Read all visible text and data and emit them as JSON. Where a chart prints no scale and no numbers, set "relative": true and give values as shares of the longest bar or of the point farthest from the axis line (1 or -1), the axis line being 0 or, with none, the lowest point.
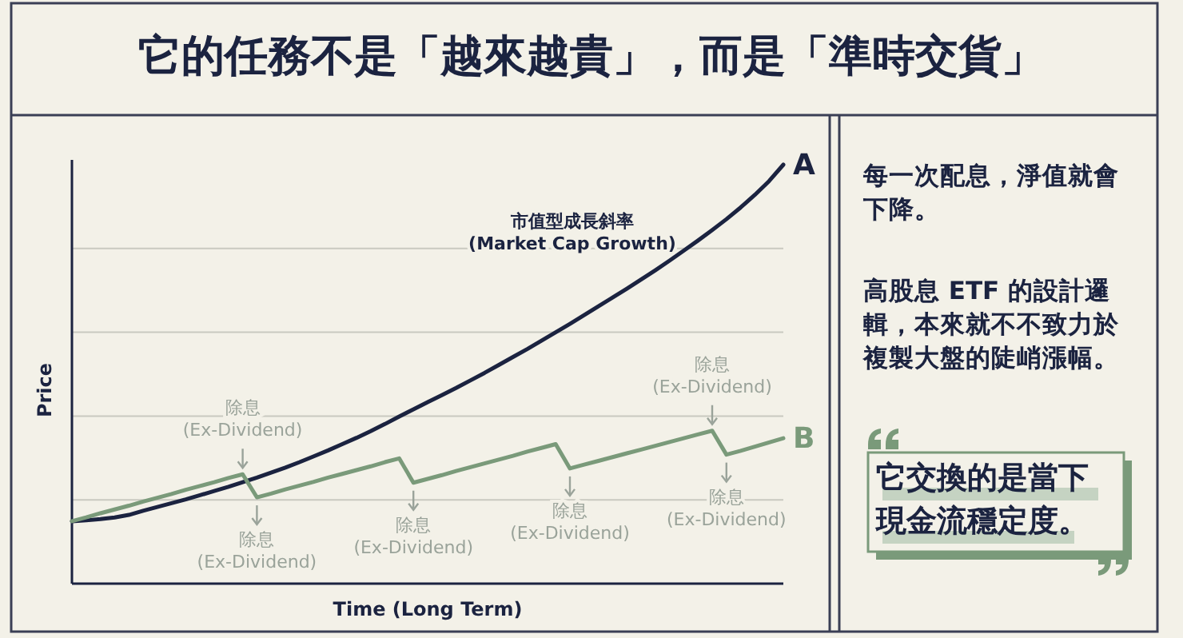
{
  "chart_data": {
    "type": "line",
    "title": "它的任務不是「越來越貴」，而是「準時交貨」",
    "xlabel": "Time (Long Term)",
    "ylabel": "Price",
    "relative": true,
    "grid": true,
    "marker": "none",
    "line_style": "solid",
    "categories": [
      null,
      null,
      null,
      null,
      null,
      null,
      null,
      null,
      null,
      null,
      null,
      null,
      null,
      null,
      null,
      null,
      null,
      null,
      null,
      null,
      null,
      null,
      null,
      null,
      null,
      null,
      null,
      null,
      null,
      null,
      null,
      null,
      null,
      null,
      null,
      null,
      null,
      null,
      null,
      null,
      null,
      null,
      null,
      null,
      null,
      null,
      null,
      null,
      null,
      null,
      null
    ],
    "series": [
      {
        "name": "A",
        "color": "#1b2340",
        "values": [
          0.149,
          0.151,
          0.154,
          0.158,
          0.164,
          0.174,
          0.183,
          0.192,
          0.201,
          0.211,
          0.221,
          0.231,
          0.242,
          0.253,
          0.265,
          0.277,
          0.29,
          0.304,
          0.318,
          0.333,
          0.348,
          0.364,
          0.381,
          0.399,
          0.416,
          0.433,
          0.45,
          0.467,
          0.485,
          0.503,
          0.522,
          0.541,
          0.56,
          0.58,
          0.6,
          0.62,
          0.641,
          0.662,
          0.683,
          0.704,
          0.726,
          0.748,
          0.771,
          0.795,
          0.819,
          0.844,
          0.87,
          0.898,
          0.928,
          0.961,
          1.0
        ]
      },
      {
        "name": "B",
        "color": "#7a9a7a",
        "values": [
          0.149,
          0.158,
          0.168,
          0.177,
          0.186,
          0.196,
          0.205,
          0.214,
          0.224,
          0.233,
          0.242,
          0.252,
          0.261,
          0.206,
          0.215,
          0.225,
          0.234,
          0.243,
          0.253,
          0.262,
          0.271,
          0.28,
          0.29,
          0.299,
          0.241,
          0.25,
          0.259,
          0.269,
          0.278,
          0.287,
          0.296,
          0.305,
          0.315,
          0.324,
          0.333,
          0.275,
          0.284,
          0.293,
          0.302,
          0.311,
          0.32,
          0.329,
          0.338,
          0.347,
          0.356,
          0.365,
          0.308,
          0.317,
          0.327,
          0.337,
          0.347
        ]
      }
    ],
    "annotations": [
      "每一次配息，淨值就會下降。",
      "高股息 ETF 的設計邏輯，本來就不不致力於複製大盤的陡峭漲幅。",
      "它交換的是當下現金流穩定度。",
      "市值型成長斜率\n(Market Cap Growth)",
      {
        "text": "除息\n(Ex-Dividend)",
        "y": 0.261
      },
      {
        "text": "除息\n(Ex-Dividend)",
        "y": 0.206
      },
      {
        "text": "除息\n(Ex-Dividend)",
        "y": 0.241
      },
      {
        "text": "除息\n(Ex-Dividend)",
        "y": 0.275
      },
      {
        "text": "除息\n(Ex-Dividend)",
        "y": 0.365
      },
      {
        "text": "除息\n(Ex-Dividend)",
        "y": 0.308
      }
    ]
  }
}
